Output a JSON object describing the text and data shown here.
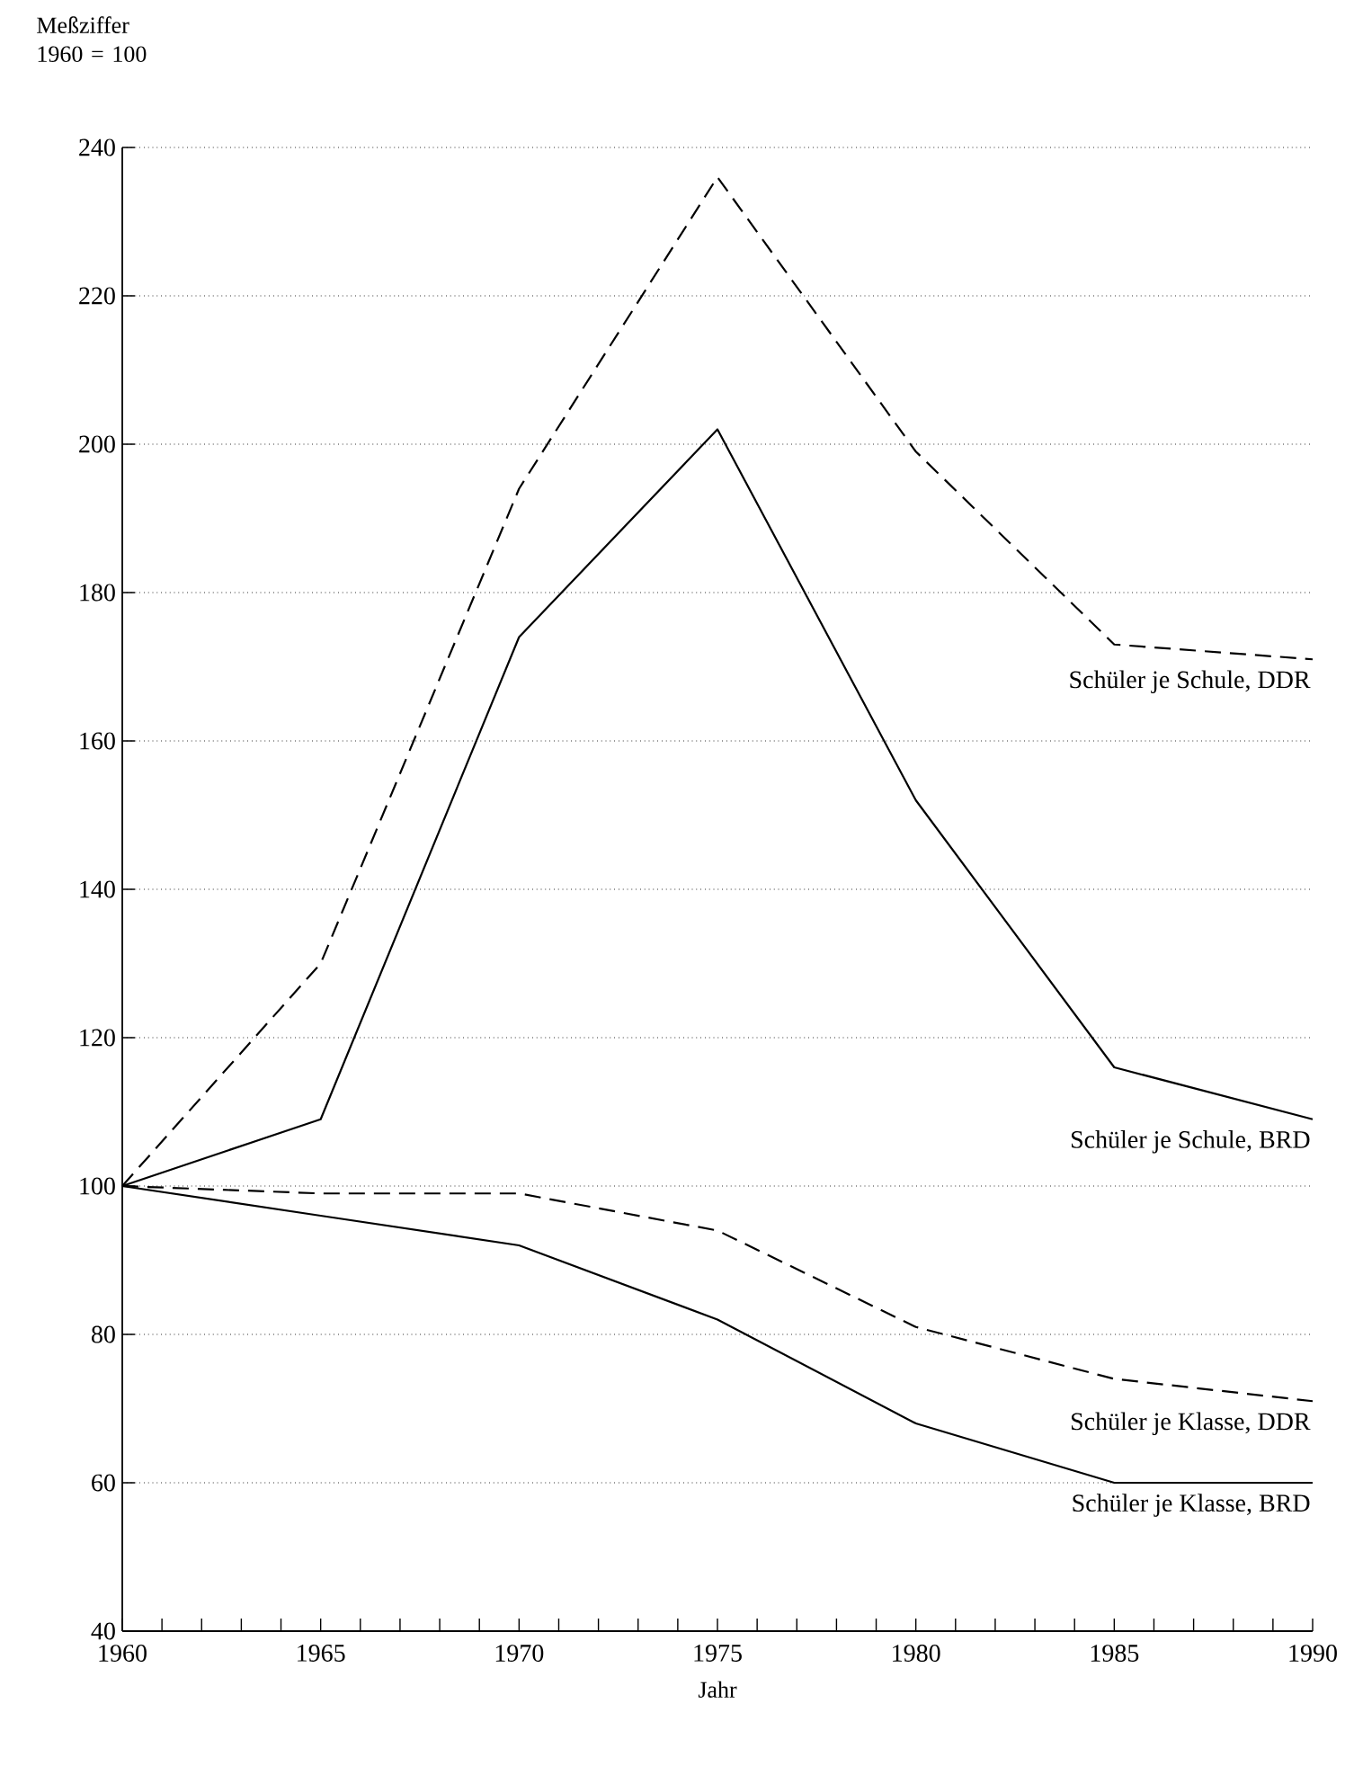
{
  "chart_data": {
    "type": "line",
    "ylabel": "Meßziffer 1960 = 100",
    "xlabel": "Jahr",
    "x": [
      1960,
      1965,
      1970,
      1975,
      1980,
      1985,
      1990
    ],
    "series": [
      {
        "name": "Schüler je Schule, DDR",
        "color": "#000000",
        "line_style": "dashed",
        "values": [
          100,
          130,
          194,
          236,
          199,
          173,
          171
        ]
      },
      {
        "name": "Schüler je Schule, BRD",
        "color": "#000000",
        "line_style": "solid",
        "values": [
          100,
          109,
          174,
          202,
          152,
          116,
          109
        ]
      },
      {
        "name": "Schüler je Klasse, DDR",
        "color": "#000000",
        "line_style": "dashed",
        "values": [
          100,
          99,
          99,
          94,
          81,
          74,
          71
        ]
      },
      {
        "name": "Schüler je Klasse, BRD",
        "color": "#000000",
        "line_style": "solid",
        "values": [
          100,
          96,
          92,
          82,
          68,
          60,
          60
        ]
      }
    ],
    "xlim": [
      1960,
      1990
    ],
    "xticks": [
      1960,
      {
        "value": 1961,
        "label": null
      },
      {
        "value": 1962,
        "label": null
      },
      {
        "value": 1963,
        "label": null
      },
      {
        "value": 1964,
        "label": null
      },
      1965,
      {
        "value": 1966,
        "label": null
      },
      {
        "value": 1967,
        "label": null
      },
      {
        "value": 1968,
        "label": null
      },
      {
        "value": 1969,
        "label": null
      },
      1970,
      {
        "value": 1971,
        "label": null
      },
      {
        "value": 1972,
        "label": null
      },
      {
        "value": 1973,
        "label": null
      },
      {
        "value": 1974,
        "label": null
      },
      1975,
      {
        "value": 1976,
        "label": null
      },
      {
        "value": 1977,
        "label": null
      },
      {
        "value": 1978,
        "label": null
      },
      {
        "value": 1979,
        "label": null
      },
      1980,
      {
        "value": 1981,
        "label": null
      },
      {
        "value": 1982,
        "label": null
      },
      {
        "value": 1983,
        "label": null
      },
      {
        "value": 1984,
        "label": null
      },
      1985,
      {
        "value": 1986,
        "label": null
      },
      {
        "value": 1987,
        "label": null
      },
      {
        "value": 1988,
        "label": null
      },
      {
        "value": 1989,
        "label": null
      },
      1990
    ],
    "ylim": [
      40,
      240
    ],
    "yticks": [
      40,
      60,
      80,
      100,
      120,
      140,
      160,
      180,
      200,
      220,
      240
    ],
    "grid": "y",
    "marker": "none"
  }
}
